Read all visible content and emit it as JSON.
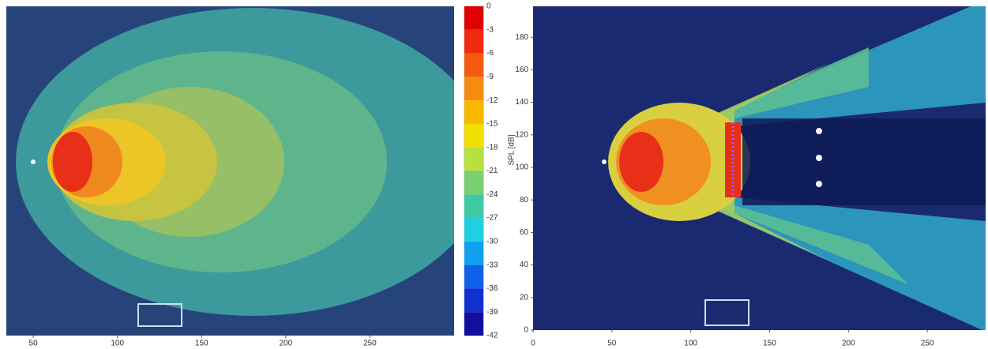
{
  "chart_data": [
    {
      "type": "contour",
      "xlim": [
        34,
        300
      ],
      "xticks": [
        50,
        100,
        150,
        200,
        250
      ]
    },
    {
      "type": "contour",
      "xlim": [
        0,
        287
      ],
      "xticks": [
        0,
        50,
        100,
        150,
        200,
        250
      ],
      "ylim": [
        0,
        199
      ],
      "yticks": [
        0,
        20,
        40,
        60,
        80,
        100,
        120,
        140,
        160,
        180
      ]
    },
    {
      "type": "colorbar",
      "label": "SPL [dB]",
      "ylim": [
        -42,
        0
      ],
      "yticks": [
        0,
        -3,
        -6,
        -9,
        -12,
        -15,
        -18,
        -21,
        -24,
        -27,
        -30,
        -33,
        -36,
        -39,
        -42
      ],
      "colors": [
        "#e00000",
        "#f02a10",
        "#f55a10",
        "#f78a10",
        "#f7b800",
        "#f0e000",
        "#b8e040",
        "#7ad070",
        "#40c8a0",
        "#20d0e0",
        "#10a0f0",
        "#1060e8",
        "#1030d0",
        "#1010a0"
      ]
    }
  ]
}
